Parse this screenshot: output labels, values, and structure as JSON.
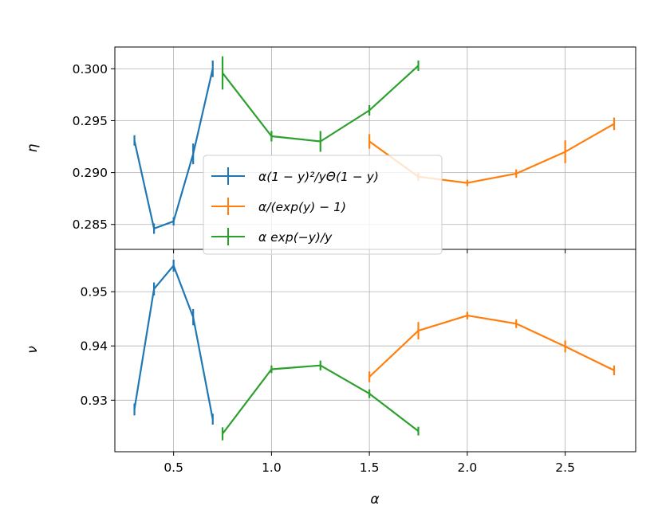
{
  "chart_data": {
    "type": "line",
    "x_axis": {
      "label": "α",
      "range": [
        0.2,
        2.86
      ],
      "ticks": [
        0.5,
        1.0,
        1.5,
        2.0,
        2.5
      ],
      "tick_labels": [
        "0.5",
        "1.0",
        "1.5",
        "2.0",
        "2.5"
      ]
    },
    "grid": true,
    "legend": {
      "placement": "lower-left of top panel",
      "entries": [
        {
          "series": 0,
          "label": "α(1 − y)²/yΘ(1 − y)"
        },
        {
          "series": 1,
          "label": "α/(exp(y) − 1)"
        },
        {
          "series": 2,
          "label": "α exp(−y)/y"
        }
      ]
    },
    "series": [
      {
        "color": "#1f77b4",
        "x": [
          0.3,
          0.4,
          0.5,
          0.6,
          0.7
        ]
      },
      {
        "color": "#ff7f0e",
        "x": [
          1.5,
          1.75,
          2.0,
          2.25,
          2.5,
          2.75
        ]
      },
      {
        "color": "#2ca02c",
        "x": [
          0.75,
          1.0,
          1.25,
          1.5,
          1.75
        ]
      }
    ],
    "panels": [
      {
        "ylabel": "η",
        "ylim": [
          0.2826,
          0.3021
        ],
        "yticks": [
          0.285,
          0.29,
          0.295,
          0.3
        ],
        "ytick_labels": [
          "0.285",
          "0.290",
          "0.295",
          "0.300"
        ],
        "values": [
          {
            "y": [
              0.2931,
              0.2846,
              0.2853,
              0.2918,
              0.3
            ],
            "yerr": [
              0.0005,
              0.0005,
              0.0004,
              0.001,
              0.0008
            ]
          },
          {
            "y": [
              0.293,
              0.2896,
              0.289,
              0.2899,
              0.292,
              0.2947
            ],
            "yerr": [
              0.0007,
              0.0004,
              0.0003,
              0.0004,
              0.0011,
              0.0006
            ]
          },
          {
            "y": [
              0.2996,
              0.2935,
              0.293,
              0.296,
              0.3003
            ],
            "yerr": [
              0.0016,
              0.0005,
              0.001,
              0.0005,
              0.0005
            ]
          }
        ]
      },
      {
        "ylabel": "ν",
        "ylim": [
          0.9205,
          0.9578
        ],
        "yticks": [
          0.93,
          0.94,
          0.95
        ],
        "ytick_labels": [
          "0.93",
          "0.94",
          "0.95"
        ],
        "values": [
          {
            "y": [
              0.9283,
              0.9505,
              0.9548,
              0.9453,
              0.9265
            ],
            "yerr": [
              0.0011,
              0.0012,
              0.0011,
              0.0015,
              0.001
            ]
          },
          {
            "y": [
              0.9343,
              0.9428,
              0.9456,
              0.9441,
              0.9399,
              0.9355
            ],
            "yerr": [
              0.001,
              0.0016,
              0.0007,
              0.0008,
              0.0011,
              0.0009
            ]
          },
          {
            "y": [
              0.9238,
              0.9357,
              0.9364,
              0.9312,
              0.9243
            ],
            "yerr": [
              0.0012,
              0.0007,
              0.0009,
              0.0008,
              0.0008
            ]
          }
        ]
      }
    ]
  }
}
